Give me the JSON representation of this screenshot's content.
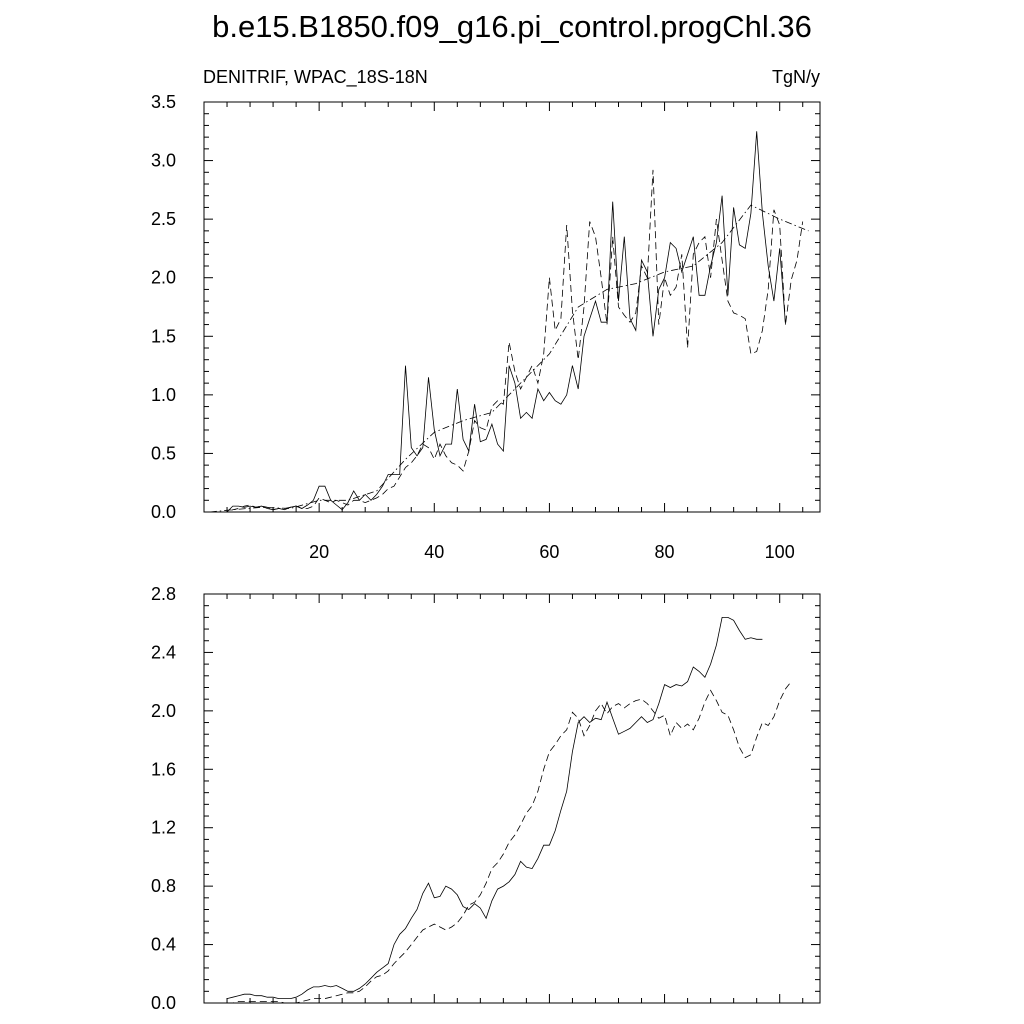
{
  "figure": {
    "title": "b.e15.B1850.f09_g16.pi_control.progChl.36"
  },
  "chart_data": [
    {
      "type": "line",
      "subtitle_left": "DENITRIF, WPAC_18S-18N",
      "subtitle_right": "TgN/y",
      "xlim": [
        0,
        107
      ],
      "ylim": [
        0,
        3.5
      ],
      "x_ticks": [
        20,
        40,
        60,
        80,
        100
      ],
      "y_ticks": [
        0,
        0.5,
        1.0,
        1.5,
        2.0,
        2.5,
        3.0,
        3.5
      ],
      "y_tick_labels": [
        "0.0",
        "0.5",
        "1.0",
        "1.5",
        "2.0",
        "2.5",
        "3.0",
        "3.5"
      ],
      "grid": false,
      "series": [
        {
          "style": "solid",
          "x": [
            1,
            2,
            3,
            4,
            5,
            6,
            7,
            8,
            9,
            10,
            11,
            12,
            13,
            14,
            15,
            16,
            17,
            18,
            19,
            20,
            21,
            22,
            23,
            24,
            25,
            26,
            27,
            28,
            29,
            30,
            31,
            32,
            33,
            34,
            35,
            36,
            37,
            38,
            39,
            40,
            41,
            42,
            43,
            44,
            45,
            46,
            47,
            48,
            49,
            50,
            51,
            52,
            53,
            54,
            55,
            56,
            57,
            58,
            59,
            60,
            61,
            62,
            63,
            64,
            65,
            66,
            67,
            68,
            69,
            70,
            71,
            72,
            73,
            74,
            75,
            76,
            77,
            78,
            79,
            80,
            81,
            82,
            83,
            84,
            85,
            86,
            87,
            88,
            89,
            90,
            91,
            92,
            93,
            94,
            95,
            96,
            97,
            98,
            99,
            100,
            101
          ],
          "y": [
            0.0,
            0.0,
            0.0,
            0.0,
            0.05,
            0.05,
            0.04,
            0.05,
            0.04,
            0.05,
            0.03,
            0.02,
            0.03,
            0.02,
            0.04,
            0.05,
            0.03,
            0.06,
            0.1,
            0.22,
            0.22,
            0.1,
            0.06,
            0.02,
            0.08,
            0.18,
            0.1,
            0.15,
            0.1,
            0.15,
            0.22,
            0.32,
            0.32,
            0.32,
            1.25,
            0.55,
            0.48,
            0.55,
            1.15,
            0.7,
            0.48,
            0.58,
            0.58,
            1.05,
            0.62,
            0.52,
            0.92,
            0.6,
            0.62,
            0.75,
            0.58,
            0.52,
            1.25,
            1.1,
            0.8,
            0.85,
            0.8,
            1.05,
            0.95,
            1.02,
            0.95,
            0.92,
            1.0,
            1.25,
            1.05,
            1.5,
            1.65,
            1.8,
            1.62,
            1.62,
            2.65,
            1.8,
            2.35,
            1.65,
            1.55,
            2.15,
            2.05,
            1.5,
            1.9,
            2.0,
            2.3,
            2.25,
            2.05,
            2.2,
            2.35,
            1.85,
            1.85,
            2.1,
            2.3,
            2.7,
            1.85,
            2.6,
            2.28,
            2.25,
            2.55,
            3.25,
            2.55,
            2.1,
            1.8,
            2.25,
            1.6
          ]
        },
        {
          "style": "dashed",
          "x": [
            1,
            2,
            3,
            4,
            5,
            6,
            7,
            8,
            9,
            10,
            11,
            12,
            13,
            14,
            15,
            16,
            17,
            18,
            19,
            20,
            21,
            22,
            23,
            24,
            25,
            26,
            27,
            28,
            29,
            30,
            31,
            32,
            33,
            34,
            35,
            36,
            37,
            38,
            39,
            40,
            41,
            42,
            43,
            44,
            45,
            46,
            47,
            48,
            49,
            50,
            51,
            52,
            53,
            54,
            55,
            56,
            57,
            58,
            59,
            60,
            61,
            62,
            63,
            64,
            65,
            66,
            67,
            68,
            69,
            70,
            71,
            72,
            73,
            74,
            75,
            76,
            77,
            78,
            79,
            80,
            81,
            82,
            83,
            84,
            85,
            86,
            87,
            88,
            89,
            90,
            91,
            92,
            93,
            94,
            95,
            96,
            97,
            98,
            99,
            100,
            101,
            102,
            103,
            104
          ],
          "y": [
            0.0,
            0.0,
            0.0,
            0.0,
            0.02,
            0.03,
            0.05,
            0.06,
            0.04,
            0.05,
            0.04,
            0.02,
            0.03,
            0.03,
            0.04,
            0.05,
            0.03,
            0.03,
            0.05,
            0.12,
            0.1,
            0.08,
            0.1,
            0.08,
            0.06,
            0.1,
            0.1,
            0.08,
            0.1,
            0.12,
            0.15,
            0.2,
            0.22,
            0.3,
            0.38,
            0.42,
            0.48,
            0.58,
            0.55,
            0.45,
            0.58,
            0.48,
            0.42,
            0.4,
            0.35,
            0.52,
            0.78,
            0.72,
            0.7,
            0.9,
            0.95,
            0.92,
            1.45,
            1.2,
            1.05,
            1.15,
            1.25,
            1.1,
            1.35,
            2.0,
            1.55,
            1.65,
            2.45,
            1.72,
            1.3,
            1.75,
            2.48,
            2.35,
            2.0,
            1.6,
            2.35,
            1.75,
            1.68,
            1.62,
            1.7,
            2.1,
            2.0,
            2.92,
            1.6,
            2.0,
            1.85,
            1.92,
            2.2,
            1.4,
            2.2,
            2.3,
            2.35,
            2.0,
            2.5,
            2.15,
            1.8,
            1.7,
            1.68,
            1.65,
            1.35,
            1.37,
            1.55,
            1.9,
            2.58,
            2.45,
            1.6,
            1.98,
            2.15,
            2.48
          ]
        },
        {
          "style": "dash-dot",
          "x": [
            1,
            5,
            10,
            15,
            20,
            25,
            30,
            35,
            40,
            45,
            50,
            55,
            60,
            65,
            70,
            75,
            80,
            85,
            90,
            95,
            100,
            105
          ],
          "y": [
            0.0,
            0.02,
            0.04,
            0.03,
            0.1,
            0.1,
            0.18,
            0.45,
            0.68,
            0.78,
            0.85,
            1.1,
            1.35,
            1.75,
            1.9,
            1.95,
            2.05,
            2.1,
            2.3,
            2.62,
            2.5,
            2.4
          ]
        }
      ]
    },
    {
      "type": "line",
      "xlim": [
        0,
        107
      ],
      "ylim": [
        0,
        2.8
      ],
      "x_ticks": [
        20,
        40,
        60,
        80,
        100
      ],
      "y_ticks": [
        0,
        0.4,
        0.8,
        1.2,
        1.6,
        2.0,
        2.4,
        2.8
      ],
      "y_tick_labels": [
        "0.0",
        "0.4",
        "0.8",
        "1.2",
        "1.6",
        "2.0",
        "2.4",
        "2.8"
      ],
      "grid": false,
      "series": [
        {
          "style": "solid",
          "x": [
            4,
            5,
            6,
            7,
            8,
            9,
            10,
            11,
            12,
            13,
            14,
            15,
            16,
            17,
            18,
            19,
            20,
            21,
            22,
            23,
            24,
            25,
            26,
            27,
            28,
            29,
            30,
            31,
            32,
            33,
            34,
            35,
            36,
            37,
            38,
            39,
            40,
            41,
            42,
            43,
            44,
            45,
            46,
            47,
            48,
            49,
            50,
            51,
            52,
            53,
            54,
            55,
            56,
            57,
            58,
            59,
            60,
            61,
            62,
            63,
            64,
            65,
            66,
            67,
            68,
            69,
            70,
            71,
            72,
            73,
            74,
            75,
            76,
            77,
            78,
            79,
            80,
            81,
            82,
            83,
            84,
            85,
            86,
            87,
            88,
            89,
            90,
            91,
            92,
            93,
            94,
            95,
            96,
            97
          ],
          "y": [
            0.03,
            0.04,
            0.05,
            0.06,
            0.06,
            0.05,
            0.05,
            0.04,
            0.04,
            0.03,
            0.03,
            0.03,
            0.04,
            0.06,
            0.09,
            0.11,
            0.11,
            0.12,
            0.11,
            0.12,
            0.1,
            0.08,
            0.08,
            0.1,
            0.13,
            0.17,
            0.21,
            0.24,
            0.27,
            0.4,
            0.47,
            0.51,
            0.58,
            0.64,
            0.75,
            0.82,
            0.72,
            0.73,
            0.8,
            0.78,
            0.74,
            0.66,
            0.64,
            0.68,
            0.65,
            0.58,
            0.7,
            0.78,
            0.8,
            0.83,
            0.88,
            0.97,
            0.93,
            0.92,
            0.99,
            1.08,
            1.08,
            1.18,
            1.32,
            1.45,
            1.72,
            1.92,
            1.96,
            1.92,
            1.95,
            1.94,
            2.06,
            1.95,
            1.84,
            1.86,
            1.88,
            1.92,
            1.96,
            1.92,
            1.94,
            2.05,
            2.18,
            2.16,
            2.18,
            2.17,
            2.2,
            2.3,
            2.27,
            2.23,
            2.32,
            2.45,
            2.64,
            2.64,
            2.62,
            2.55,
            2.49,
            2.5,
            2.49,
            2.49
          ]
        },
        {
          "style": "dashed",
          "x": [
            4,
            5,
            6,
            7,
            8,
            9,
            10,
            11,
            12,
            13,
            14,
            15,
            16,
            17,
            18,
            19,
            20,
            21,
            22,
            23,
            24,
            25,
            26,
            27,
            28,
            29,
            30,
            31,
            32,
            33,
            34,
            35,
            36,
            37,
            38,
            39,
            40,
            41,
            42,
            43,
            44,
            45,
            46,
            47,
            48,
            49,
            50,
            51,
            52,
            53,
            54,
            55,
            56,
            57,
            58,
            59,
            60,
            61,
            62,
            63,
            64,
            65,
            66,
            67,
            68,
            69,
            70,
            71,
            72,
            73,
            74,
            75,
            76,
            77,
            78,
            79,
            80,
            81,
            82,
            83,
            84,
            85,
            86,
            87,
            88,
            89,
            90,
            91,
            92,
            93,
            94,
            95,
            96,
            97,
            98,
            99,
            100,
            101,
            102
          ],
          "y": [
            0.0,
            0.0,
            0.01,
            0.01,
            0.01,
            0.01,
            0.01,
            0.01,
            0.01,
            0.01,
            0.0,
            0.0,
            0.0,
            0.01,
            0.02,
            0.03,
            0.03,
            0.03,
            0.04,
            0.05,
            0.06,
            0.07,
            0.07,
            0.08,
            0.11,
            0.15,
            0.18,
            0.19,
            0.22,
            0.27,
            0.31,
            0.35,
            0.4,
            0.45,
            0.5,
            0.52,
            0.54,
            0.52,
            0.5,
            0.52,
            0.55,
            0.6,
            0.67,
            0.69,
            0.74,
            0.82,
            0.92,
            0.96,
            1.02,
            1.1,
            1.15,
            1.22,
            1.3,
            1.35,
            1.45,
            1.6,
            1.72,
            1.77,
            1.83,
            1.87,
            1.99,
            1.95,
            1.83,
            1.9,
            2.0,
            2.05,
            1.98,
            2.03,
            2.05,
            2.02,
            2.05,
            2.07,
            2.08,
            2.05,
            2.0,
            1.95,
            1.97,
            1.83,
            1.92,
            1.88,
            1.91,
            1.87,
            1.95,
            2.06,
            2.14,
            2.07,
            1.99,
            1.97,
            1.87,
            1.75,
            1.68,
            1.7,
            1.82,
            1.92,
            1.9,
            1.96,
            2.07,
            2.15,
            2.2
          ]
        }
      ]
    }
  ]
}
